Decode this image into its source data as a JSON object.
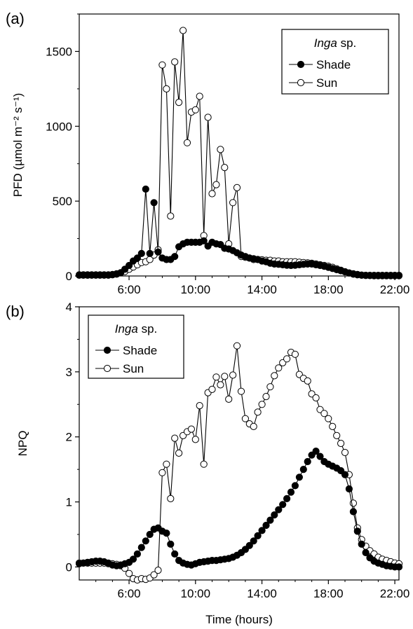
{
  "chart_data": [
    {
      "type": "line",
      "panel_label": "(a)",
      "title": "",
      "xlabel": "",
      "ylabel": "PFD (µmol m⁻² s⁻¹)",
      "xlim": [
        3,
        22.25
      ],
      "ylim": [
        0,
        1750
      ],
      "x_ticks": [
        "6:00",
        "10:00",
        "14:00",
        "18:00",
        "22:00"
      ],
      "x_tick_values": [
        6,
        10,
        14,
        18,
        22
      ],
      "y_ticks": [
        0,
        500,
        1000,
        1500
      ],
      "legend": {
        "title_italic": "Inga",
        "title_rest": " sp.",
        "placement": "top-right"
      },
      "series": [
        {
          "name": "Shade",
          "marker": "filled",
          "x": [
            3,
            3.25,
            3.5,
            3.75,
            4,
            4.25,
            4.5,
            4.75,
            5,
            5.25,
            5.5,
            5.75,
            6,
            6.25,
            6.5,
            6.75,
            7,
            7.25,
            7.5,
            7.75,
            8,
            8.25,
            8.5,
            8.75,
            9,
            9.25,
            9.5,
            9.75,
            10,
            10.25,
            10.5,
            10.75,
            11,
            11.25,
            11.5,
            11.75,
            12,
            12.25,
            12.5,
            12.75,
            13,
            13.25,
            13.5,
            13.75,
            14,
            14.25,
            14.5,
            14.75,
            15,
            15.25,
            15.5,
            15.75,
            16,
            16.25,
            16.5,
            16.75,
            17,
            17.25,
            17.5,
            17.75,
            18,
            18.25,
            18.5,
            18.75,
            19,
            19.25,
            19.5,
            19.75,
            20,
            20.25,
            20.5,
            20.75,
            21,
            21.25,
            21.5,
            21.75,
            22,
            22.25
          ],
          "values": [
            5,
            5,
            5,
            5,
            5,
            5,
            5,
            5,
            8,
            12,
            22,
            45,
            70,
            100,
            120,
            150,
            580,
            150,
            490,
            160,
            120,
            110,
            110,
            130,
            195,
            215,
            225,
            225,
            225,
            225,
            235,
            200,
            225,
            215,
            210,
            185,
            180,
            170,
            155,
            140,
            130,
            120,
            115,
            110,
            100,
            95,
            85,
            80,
            78,
            75,
            72,
            70,
            72,
            75,
            78,
            80,
            80,
            75,
            70,
            65,
            58,
            50,
            42,
            35,
            28,
            20,
            15,
            10,
            6,
            4,
            3,
            2,
            2,
            2,
            2,
            2,
            2,
            2
          ]
        },
        {
          "name": "Sun",
          "marker": "open",
          "x": [
            3,
            3.25,
            3.5,
            3.75,
            4,
            4.25,
            4.5,
            4.75,
            5,
            5.25,
            5.5,
            5.75,
            6,
            6.25,
            6.5,
            6.75,
            7,
            7.25,
            7.5,
            7.75,
            8,
            8.25,
            8.5,
            8.75,
            9,
            9.25,
            9.5,
            9.75,
            10,
            10.25,
            10.5,
            10.75,
            11,
            11.25,
            11.5,
            11.75,
            12,
            12.25,
            12.5,
            12.75,
            13,
            13.25,
            13.5,
            13.75,
            14,
            14.25,
            14.5,
            14.75,
            15,
            15.25,
            15.5,
            15.75,
            16,
            16.25,
            16.5,
            16.75,
            17,
            17.25,
            17.5,
            17.75,
            18,
            18.25,
            18.5,
            18.75,
            19,
            19.25,
            19.5,
            19.75,
            20,
            20.25,
            20.5,
            20.75,
            21,
            21.25,
            21.5,
            21.75,
            22,
            22.25
          ],
          "values": [
            8,
            8,
            8,
            8,
            8,
            8,
            8,
            8,
            10,
            15,
            22,
            30,
            45,
            60,
            75,
            90,
            95,
            110,
            140,
            175,
            1410,
            1250,
            400,
            1430,
            1160,
            1640,
            890,
            1095,
            1110,
            1200,
            270,
            1060,
            550,
            610,
            845,
            725,
            215,
            490,
            590,
            130,
            125,
            120,
            110,
            110,
            108,
            105,
            105,
            100,
            100,
            95,
            95,
            95,
            95,
            92,
            90,
            88,
            85,
            80,
            75,
            70,
            65,
            58,
            48,
            38,
            28,
            20,
            12,
            8,
            5,
            4,
            4,
            4,
            4,
            4,
            4,
            4,
            4,
            4
          ]
        }
      ]
    },
    {
      "type": "line",
      "panel_label": "(b)",
      "title": "",
      "xlabel": "Time (hours)",
      "ylabel": "NPQ",
      "xlim": [
        3,
        22.25
      ],
      "ylim": [
        -0.2,
        4
      ],
      "x_ticks": [
        "6:00",
        "10:00",
        "14:00",
        "18:00",
        "22:00"
      ],
      "x_tick_values": [
        6,
        10,
        14,
        18,
        22
      ],
      "y_ticks": [
        0,
        1,
        2,
        3,
        4
      ],
      "legend": {
        "title_italic": "Inga",
        "title_rest": " sp.",
        "placement": "top-left"
      },
      "series": [
        {
          "name": "Shade",
          "marker": "filled",
          "x": [
            3,
            3.25,
            3.5,
            3.75,
            4,
            4.25,
            4.5,
            4.75,
            5,
            5.25,
            5.5,
            5.75,
            6,
            6.25,
            6.5,
            6.75,
            7,
            7.25,
            7.5,
            7.75,
            8,
            8.25,
            8.5,
            8.75,
            9,
            9.25,
            9.5,
            9.75,
            10,
            10.25,
            10.5,
            10.75,
            11,
            11.25,
            11.5,
            11.75,
            12,
            12.25,
            12.5,
            12.75,
            13,
            13.25,
            13.5,
            13.75,
            14,
            14.25,
            14.5,
            14.75,
            15,
            15.25,
            15.5,
            15.75,
            16,
            16.25,
            16.5,
            16.75,
            17,
            17.25,
            17.5,
            17.75,
            18,
            18.25,
            18.5,
            18.75,
            19,
            19.25,
            19.5,
            19.75,
            20,
            20.25,
            20.5,
            20.75,
            21,
            21.25,
            21.5,
            21.75,
            22,
            22.25
          ],
          "values": [
            0.05,
            0.06,
            0.07,
            0.08,
            0.09,
            0.09,
            0.08,
            0.06,
            0.03,
            0.02,
            0.03,
            0.05,
            0.07,
            0.12,
            0.2,
            0.3,
            0.4,
            0.5,
            0.58,
            0.6,
            0.55,
            0.52,
            0.35,
            0.2,
            0.1,
            0.06,
            0.04,
            0.03,
            0.05,
            0.07,
            0.08,
            0.09,
            0.1,
            0.1,
            0.11,
            0.12,
            0.13,
            0.15,
            0.18,
            0.22,
            0.27,
            0.33,
            0.4,
            0.48,
            0.56,
            0.64,
            0.72,
            0.8,
            0.88,
            0.96,
            1.05,
            1.15,
            1.25,
            1.38,
            1.5,
            1.62,
            1.72,
            1.78,
            1.7,
            1.62,
            1.58,
            1.55,
            1.52,
            1.48,
            1.42,
            1.2,
            0.85,
            0.55,
            0.35,
            0.22,
            0.14,
            0.09,
            0.06,
            0.04,
            0.02,
            0.01,
            0,
            0
          ]
        },
        {
          "name": "Sun",
          "marker": "open",
          "x": [
            3,
            3.25,
            3.5,
            3.75,
            4,
            4.25,
            4.5,
            4.75,
            5,
            5.25,
            5.5,
            5.75,
            6,
            6.25,
            6.5,
            6.75,
            7,
            7.25,
            7.5,
            7.75,
            8,
            8.25,
            8.5,
            8.75,
            9,
            9.25,
            9.5,
            9.75,
            10,
            10.25,
            10.5,
            10.75,
            11,
            11.25,
            11.5,
            11.75,
            12,
            12.25,
            12.5,
            12.75,
            13,
            13.25,
            13.5,
            13.75,
            14,
            14.25,
            14.5,
            14.75,
            15,
            15.25,
            15.5,
            15.75,
            16,
            16.25,
            16.5,
            16.75,
            17,
            17.25,
            17.5,
            17.75,
            18,
            18.25,
            18.5,
            18.75,
            19,
            19.25,
            19.5,
            19.75,
            20,
            20.25,
            20.5,
            20.75,
            21,
            21.25,
            21.5,
            21.75,
            22,
            22.25
          ],
          "values": [
            0.06,
            0.06,
            0.06,
            0.06,
            0.06,
            0.06,
            0.06,
            0.05,
            0.05,
            0.04,
            0.02,
            -0.02,
            -0.1,
            -0.18,
            -0.2,
            -0.18,
            -0.19,
            -0.17,
            -0.12,
            -0.05,
            1.45,
            1.58,
            1.05,
            1.98,
            1.75,
            2.02,
            2.08,
            2.12,
            1.96,
            2.48,
            1.58,
            2.68,
            2.73,
            2.92,
            2.8,
            2.93,
            2.58,
            2.95,
            3.4,
            2.7,
            2.28,
            2.2,
            2.16,
            2.38,
            2.5,
            2.62,
            2.77,
            2.94,
            3.06,
            3.14,
            3.2,
            3.3,
            3.27,
            2.96,
            2.9,
            2.86,
            2.66,
            2.6,
            2.42,
            2.36,
            2.28,
            2.16,
            2.02,
            1.9,
            1.76,
            1.42,
            0.98,
            0.6,
            0.42,
            0.32,
            0.25,
            0.2,
            0.15,
            0.12,
            0.1,
            0.08,
            0.06,
            0.05
          ]
        }
      ]
    }
  ]
}
